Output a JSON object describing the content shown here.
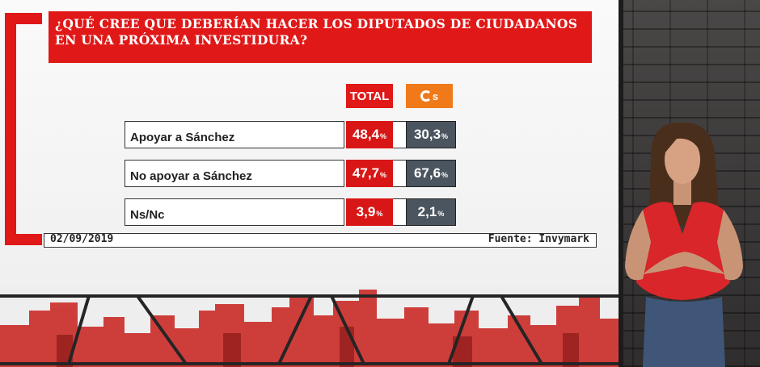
{
  "graphic": {
    "title": "¿QUÉ CREE QUE DEBERÍAN HACER LOS DIPUTADOS DE CIUDADANOS\nEN UNA PRÓXIMA INVESTIDURA?",
    "columns": {
      "total": "TOTAL",
      "cs": "Cs"
    },
    "rows": [
      {
        "label": "Apoyar a Sánchez",
        "total": "48,4",
        "cs": "30,3"
      },
      {
        "label": "No apoyar a Sánchez",
        "total": "47,7",
        "cs": "67,6"
      },
      {
        "label": "Ns/Nc",
        "total": "3,9",
        "cs": "2,1"
      }
    ],
    "percent_sign": "%",
    "date": "02/09/2019",
    "source": "Fuente: Invymark"
  },
  "colors": {
    "brand_red": "#e01818",
    "cs_orange": "#f07a1a",
    "cs_cell": "#4b5560"
  }
}
